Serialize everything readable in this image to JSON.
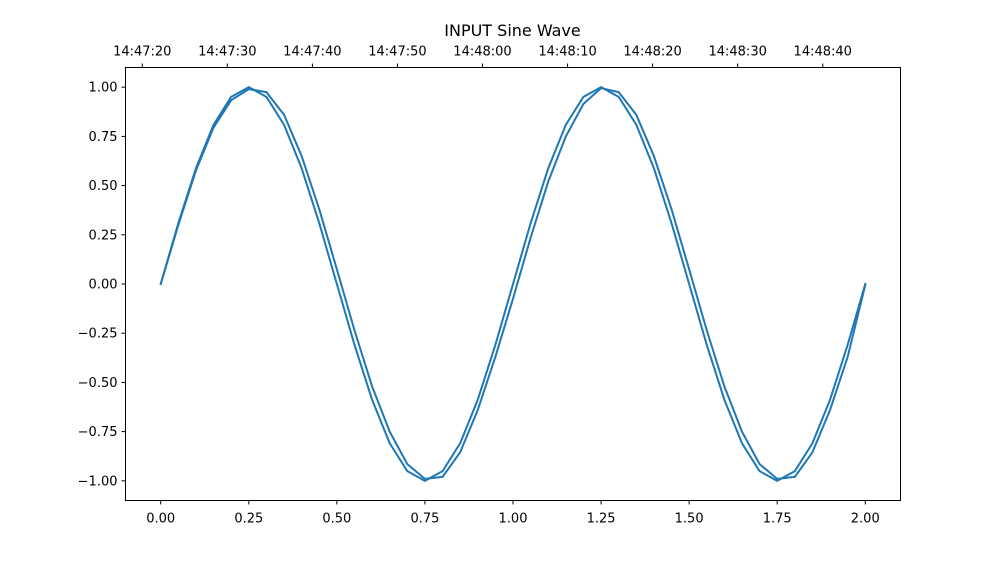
{
  "chart_data": {
    "type": "line",
    "title": "INPUT Sine Wave",
    "xlabel": "",
    "ylabel": "",
    "xlim": [
      -0.1,
      2.1
    ],
    "ylim": [
      -1.1,
      1.1
    ],
    "grid": false,
    "x_ticks": [
      0.0,
      0.25,
      0.5,
      0.75,
      1.0,
      1.25,
      1.5,
      1.75,
      2.0
    ],
    "x_tick_labels": [
      "0.00",
      "0.25",
      "0.50",
      "0.75",
      "1.00",
      "1.25",
      "1.50",
      "1.75",
      "2.00"
    ],
    "y_ticks": [
      1.0,
      0.75,
      0.5,
      0.25,
      0.0,
      -0.25,
      -0.5,
      -0.75,
      -1.0
    ],
    "y_tick_labels": [
      "1.00",
      "0.75",
      "0.50",
      "0.25",
      "0.00",
      "−0.25",
      "−0.50",
      "−0.75",
      "−1.00"
    ],
    "top_axis": {
      "ticks": [
        -0.0524,
        0.189,
        0.4305,
        0.672,
        0.9134,
        1.1549,
        1.3963,
        1.6378,
        1.8793
      ],
      "tick_labels": [
        "14:47:20",
        "14:47:30",
        "14:47:40",
        "14:47:50",
        "14:48:00",
        "14:48:10",
        "14:48:20",
        "14:48:30",
        "14:48:40"
      ]
    },
    "series": [
      {
        "color": "#1f77b4",
        "x": [
          0.0,
          0.05,
          0.1,
          0.15,
          0.2,
          0.25,
          0.3,
          0.35,
          0.4,
          0.45,
          0.5,
          0.55,
          0.6,
          0.65,
          0.7,
          0.75,
          0.8,
          0.85,
          0.9,
          0.95,
          1.0,
          1.05,
          1.1,
          1.15,
          1.2,
          1.25,
          1.3,
          1.35,
          1.4,
          1.45,
          1.5,
          1.55,
          1.6,
          1.65,
          1.7,
          1.75,
          1.8,
          1.85,
          1.9,
          1.95,
          2.0
        ],
        "y": [
          0.0,
          0.309,
          0.588,
          0.809,
          0.951,
          1.0,
          0.951,
          0.809,
          0.588,
          0.309,
          0.0,
          -0.309,
          -0.588,
          -0.809,
          -0.951,
          -1.0,
          -0.951,
          -0.809,
          -0.588,
          -0.309,
          0.0,
          0.309,
          0.588,
          0.809,
          0.951,
          1.0,
          0.951,
          0.809,
          0.588,
          0.309,
          0.0,
          -0.309,
          -0.588,
          -0.809,
          -0.951,
          -1.0,
          -0.951,
          -0.809,
          -0.588,
          -0.309,
          0.0
        ]
      },
      {
        "color": "#1f77b4",
        "x": [
          0.0,
          0.05,
          0.1,
          0.15,
          0.2,
          0.25,
          0.3,
          0.35,
          0.4,
          0.45,
          0.5,
          0.55,
          0.6,
          0.65,
          0.7,
          0.75,
          0.8,
          0.85,
          0.9,
          0.95,
          1.0,
          1.05,
          1.1,
          1.15,
          1.2,
          1.25,
          1.3,
          1.35,
          1.4,
          1.45,
          1.5,
          1.55,
          1.6,
          1.65,
          1.7,
          1.75,
          1.8,
          1.85,
          1.9,
          1.95,
          2.0
        ],
        "y": [
          0.0,
          0.3,
          0.577,
          0.795,
          0.934,
          0.99,
          0.975,
          0.86,
          0.65,
          0.38,
          0.075,
          -0.235,
          -0.52,
          -0.75,
          -0.915,
          -0.99,
          -0.98,
          -0.855,
          -0.64,
          -0.37,
          -0.075,
          0.235,
          0.52,
          0.75,
          0.915,
          0.995,
          0.975,
          0.86,
          0.65,
          0.38,
          0.075,
          -0.235,
          -0.52,
          -0.75,
          -0.915,
          -0.99,
          -0.98,
          -0.855,
          -0.64,
          -0.37,
          -0.005
        ]
      }
    ]
  }
}
